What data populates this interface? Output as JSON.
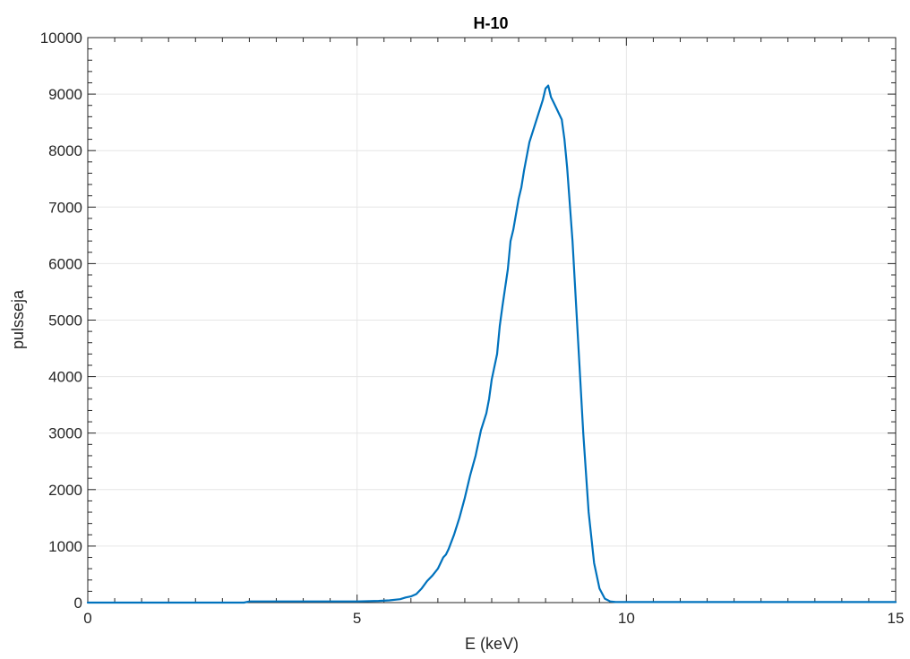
{
  "chart_data": {
    "type": "line",
    "title": "H-10",
    "xlabel": "E (keV)",
    "ylabel": "pulsseja",
    "xlim": [
      0,
      15
    ],
    "ylim": [
      0,
      10000
    ],
    "xticks": [
      0,
      5,
      10,
      15
    ],
    "yticks": [
      0,
      1000,
      2000,
      3000,
      4000,
      5000,
      6000,
      7000,
      8000,
      9000,
      10000
    ],
    "grid": true,
    "line_color": "#0072BD",
    "series": [
      {
        "x": [
          0,
          1,
          2,
          2.9,
          3.0,
          3.5,
          4.0,
          4.5,
          5.0,
          5.4,
          5.6,
          5.8,
          5.9,
          6.0,
          6.1,
          6.2,
          6.3,
          6.4,
          6.5,
          6.6,
          6.65,
          6.7,
          6.8,
          6.9,
          7.0,
          7.1,
          7.2,
          7.3,
          7.4,
          7.45,
          7.5,
          7.6,
          7.65,
          7.7,
          7.8,
          7.85,
          7.9,
          8.0,
          8.05,
          8.1,
          8.2,
          8.3,
          8.4,
          8.45,
          8.5,
          8.55,
          8.6,
          8.65,
          8.7,
          8.8,
          8.85,
          8.9,
          9.0,
          9.1,
          9.2,
          9.3,
          9.4,
          9.5,
          9.6,
          9.7,
          9.8,
          10.0,
          11,
          12,
          13,
          14,
          15
        ],
        "y": [
          0,
          0,
          0,
          0,
          20,
          20,
          20,
          20,
          20,
          30,
          40,
          60,
          90,
          110,
          150,
          250,
          380,
          480,
          600,
          800,
          850,
          950,
          1200,
          1500,
          1850,
          2250,
          2600,
          3050,
          3350,
          3600,
          3950,
          4400,
          4900,
          5250,
          5900,
          6400,
          6600,
          7150,
          7350,
          7650,
          8150,
          8450,
          8750,
          8900,
          9100,
          9150,
          8950,
          8850,
          8750,
          8550,
          8200,
          7700,
          6400,
          4700,
          3000,
          1600,
          700,
          250,
          70,
          20,
          10,
          10,
          10,
          10,
          10,
          10,
          10
        ]
      }
    ]
  }
}
